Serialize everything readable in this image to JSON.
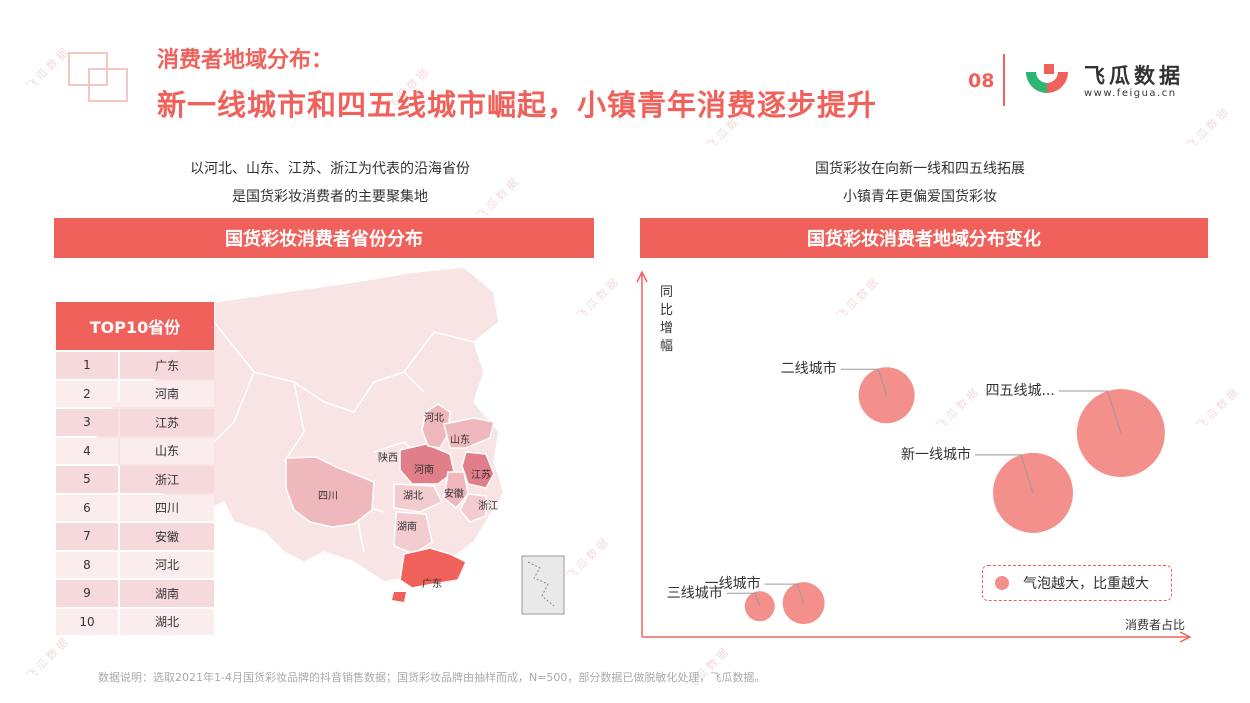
{
  "header": {
    "title_line1": "消费者地域分布：",
    "title_line2": "新一线城市和四五线城市崛起，小镇青年消费逐步提升",
    "page_number": "08",
    "logo_text": "飞瓜数据",
    "logo_url": "www.feigua.cn"
  },
  "left": {
    "subtitle_line1": "以河北、山东、江苏、浙江为代表的沿海省份",
    "subtitle_line2": "是国货彩妆消费者的主要聚集地",
    "banner": "国货彩妆消费者省份分布",
    "top10_title": "TOP10省份",
    "top10": [
      {
        "rank": "1",
        "province": "广东"
      },
      {
        "rank": "2",
        "province": "河南"
      },
      {
        "rank": "3",
        "province": "江苏"
      },
      {
        "rank": "4",
        "province": "山东"
      },
      {
        "rank": "5",
        "province": "浙江"
      },
      {
        "rank": "6",
        "province": "四川"
      },
      {
        "rank": "7",
        "province": "安徽"
      },
      {
        "rank": "8",
        "province": "河北"
      },
      {
        "rank": "9",
        "province": "湖南"
      },
      {
        "rank": "10",
        "province": "湖北"
      }
    ],
    "map_labels": {
      "hebei": "河北",
      "shandong": "山东",
      "shaanxi": "陕西",
      "henan": "河南",
      "jiangsu": "江苏",
      "sichuan": "四川",
      "hubei": "湖北",
      "anhui": "安徽",
      "zhejiang": "浙江",
      "hunan": "湖南",
      "guangdong": "广东"
    }
  },
  "right": {
    "subtitle_line1": "国货彩妆在向新一线和四五线拓展",
    "subtitle_line2": "小镇青年更偏爱国货彩妆",
    "banner": "国货彩妆消费者地域分布变化",
    "legend": "气泡越大，比重越大"
  },
  "chart_data": {
    "type": "scatter",
    "xlabel": "消费者占比",
    "ylabel": "同比增幅",
    "xlim": [
      0,
      100
    ],
    "ylim": [
      0,
      100
    ],
    "color": "#f3908b",
    "points": [
      {
        "label": "二线城市",
        "x": 45,
        "y": 72,
        "size": 28
      },
      {
        "label": "四五线城...",
        "x": 93,
        "y": 60,
        "size": 44
      },
      {
        "label": "新一线城市",
        "x": 75,
        "y": 41,
        "size": 40
      },
      {
        "label": "三线城市",
        "x": 19,
        "y": 5,
        "size": 15
      },
      {
        "label": "一线城市",
        "x": 28,
        "y": 6,
        "size": 21
      }
    ]
  },
  "footnote": "数据说明：选取2021年1-4月国货彩妆品牌的抖音销售数据；国货彩妆品牌由抽样而成，N=500，部分数据已做脱敏化处理，飞瓜数据。",
  "colors": {
    "accent": "#f0615b",
    "map_base": "#f8e4e5",
    "map_mid": "#efb8bd",
    "map_dark": "#e07f89",
    "map_top": "#f0615b"
  }
}
